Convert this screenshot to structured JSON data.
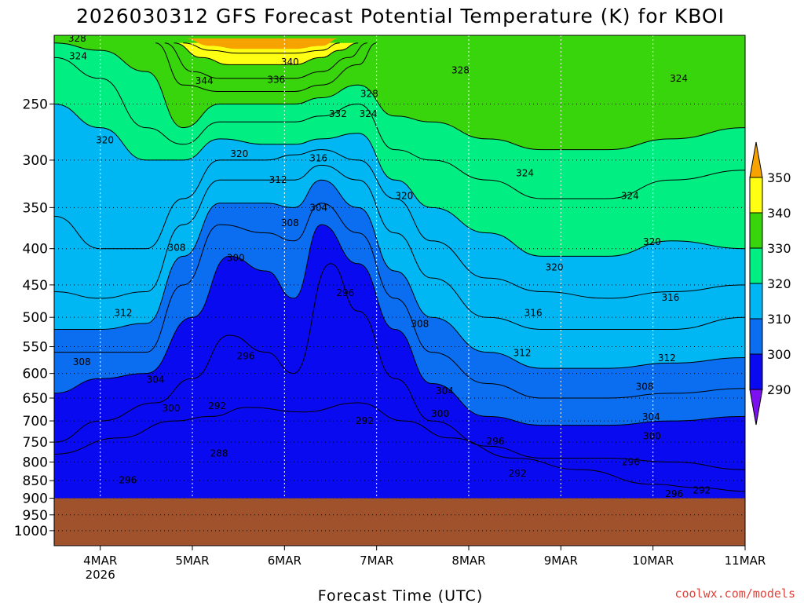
{
  "chart_data": {
    "type": "contour-filled-time-height",
    "title": "2026030312 GFS Forecast Potential Temperature (K) for KBOI",
    "xlabel": "Forecast Time (UTC)",
    "ylabel": "",
    "credit": "coolwx.com/models",
    "colors": {
      "t350": "#f6a300",
      "t340": "#ffff14",
      "t330": "#38d40c",
      "t320": "#00ee82",
      "t310": "#00b7f4",
      "t300": "#0b6ef0",
      "t290": "#0a0af0",
      "t280": "#7c10ee",
      "ground": "#a0522d"
    },
    "x_ticks": [
      {
        "label": "4MAR",
        "sub": "2026",
        "day": 4
      },
      {
        "label": "5MAR",
        "sub": "",
        "day": 5
      },
      {
        "label": "6MAR",
        "sub": "",
        "day": 6
      },
      {
        "label": "7MAR",
        "sub": "",
        "day": 7
      },
      {
        "label": "8MAR",
        "sub": "",
        "day": 8
      },
      {
        "label": "9MAR",
        "sub": "",
        "day": 9
      },
      {
        "label": "10MAR",
        "sub": "",
        "day": 10
      },
      {
        "label": "11MAR",
        "sub": "",
        "day": 11
      }
    ],
    "xlim_days": [
      3.5,
      11
    ],
    "y_ticks": [
      "250",
      "300",
      "350",
      "400",
      "450",
      "500",
      "550",
      "600",
      "650",
      "700",
      "750",
      "800",
      "850",
      "900",
      "950",
      "1000"
    ],
    "ylim_hpa": [
      1050,
      200
    ],
    "y_axis": "log-pressure",
    "surface_pressure_hpa": 900,
    "colorbar": {
      "levels": [
        "350",
        "340",
        "330",
        "320",
        "310",
        "300",
        "290"
      ],
      "extend": "both"
    },
    "isotherms": [
      {
        "value": 292,
        "t": [
          3.5,
          4.2,
          4.8,
          5.2,
          5.6,
          6.2,
          6.8,
          7.3,
          7.8,
          8.5,
          9.2,
          10.0,
          10.5,
          11
        ],
        "p": [
          780,
          740,
          700,
          690,
          670,
          680,
          660,
          700,
          740,
          790,
          820,
          860,
          870,
          880
        ]
      },
      {
        "value": 296,
        "t": [
          3.5,
          4.0,
          4.6,
          5.0,
          5.4,
          5.8,
          6.1,
          6.5,
          6.8,
          7.2,
          7.6,
          8.2,
          8.8,
          9.5,
          10.2,
          11
        ],
        "p": [
          750,
          700,
          660,
          610,
          530,
          560,
          600,
          420,
          490,
          610,
          700,
          760,
          790,
          790,
          800,
          820
        ]
      },
      {
        "value": 300,
        "t": [
          3.5,
          4.0,
          4.5,
          5.0,
          5.4,
          5.8,
          6.1,
          6.4,
          6.8,
          7.2,
          7.6,
          8.2,
          8.8,
          9.5,
          10.2,
          11
        ],
        "p": [
          640,
          610,
          600,
          500,
          410,
          430,
          470,
          370,
          420,
          520,
          620,
          690,
          710,
          710,
          700,
          690
        ]
      },
      {
        "value": 304,
        "t": [
          3.5,
          4.0,
          4.5,
          4.9,
          5.3,
          5.8,
          6.1,
          6.4,
          6.8,
          7.2,
          7.6,
          8.2,
          8.8,
          9.5,
          10.2,
          11
        ],
        "p": [
          560,
          560,
          560,
          450,
          370,
          380,
          390,
          345,
          380,
          470,
          560,
          620,
          650,
          650,
          640,
          630
        ]
      },
      {
        "value": 308,
        "t": [
          3.5,
          4.0,
          4.5,
          4.9,
          5.3,
          5.8,
          6.1,
          6.4,
          6.8,
          7.2,
          7.6,
          8.2,
          8.8,
          9.5,
          10.2,
          11
        ],
        "p": [
          520,
          520,
          510,
          410,
          345,
          345,
          350,
          320,
          350,
          430,
          500,
          560,
          590,
          590,
          580,
          570
        ]
      },
      {
        "value": 312,
        "t": [
          3.5,
          4.0,
          4.5,
          4.9,
          5.3,
          5.8,
          6.1,
          6.4,
          6.8,
          7.2,
          7.6,
          8.2,
          8.8,
          9.5,
          10.2,
          11
        ],
        "p": [
          460,
          470,
          460,
          370,
          320,
          320,
          320,
          305,
          320,
          380,
          440,
          500,
          520,
          520,
          520,
          500
        ]
      },
      {
        "value": 316,
        "t": [
          3.5,
          4.0,
          4.5,
          4.9,
          5.3,
          5.8,
          6.1,
          6.4,
          6.8,
          7.2,
          7.6,
          8.2,
          8.8,
          9.5,
          10.2,
          11
        ],
        "p": [
          360,
          400,
          400,
          340,
          300,
          300,
          295,
          290,
          300,
          340,
          390,
          440,
          460,
          470,
          460,
          450
        ]
      },
      {
        "value": 320,
        "t": [
          3.5,
          4.0,
          4.5,
          4.9,
          5.3,
          5.8,
          6.1,
          6.4,
          6.8,
          7.2,
          7.6,
          8.2,
          8.8,
          9.5,
          10.2,
          11
        ],
        "p": [
          250,
          270,
          300,
          300,
          280,
          285,
          285,
          280,
          275,
          320,
          350,
          380,
          410,
          410,
          390,
          400
        ]
      },
      {
        "value": 324,
        "t": [
          3.5,
          4.0,
          4.5,
          4.9,
          5.3,
          5.8,
          6.1,
          6.4,
          6.8,
          7.2,
          7.6,
          8.2,
          8.8,
          9.5,
          10.2,
          11
        ],
        "p": [
          215,
          230,
          270,
          285,
          265,
          265,
          265,
          260,
          250,
          290,
          300,
          320,
          340,
          340,
          320,
          310
        ]
      },
      {
        "value": 328,
        "t": [
          3.5,
          4.0,
          4.5,
          4.9,
          5.3,
          5.8,
          6.1,
          6.4,
          6.8,
          7.2,
          7.6,
          8.2,
          8.8,
          9.5,
          10.2,
          11
        ],
        "p": [
          205,
          210,
          225,
          270,
          250,
          250,
          250,
          245,
          235,
          260,
          265,
          280,
          290,
          290,
          280,
          270
        ]
      },
      {
        "value": 332,
        "t": [
          4.6,
          4.9,
          5.3,
          5.8,
          6.1,
          6.4,
          6.8,
          7.0
        ],
        "p": [
          205,
          235,
          240,
          240,
          240,
          235,
          220,
          205
        ]
      },
      {
        "value": 336,
        "t": [
          4.7,
          5.0,
          5.3,
          5.8,
          6.1,
          6.4,
          6.7,
          6.9
        ],
        "p": [
          205,
          225,
          230,
          230,
          230,
          225,
          215,
          205
        ]
      },
      {
        "value": 340,
        "t": [
          4.8,
          5.1,
          5.4,
          5.8,
          6.1,
          6.4,
          6.6,
          6.8
        ],
        "p": [
          205,
          215,
          220,
          220,
          220,
          215,
          210,
          205
        ]
      },
      {
        "value": 344,
        "t": [
          4.9,
          5.2,
          5.5,
          5.8,
          6.1,
          6.4,
          6.6
        ],
        "p": [
          205,
          210,
          212,
          212,
          212,
          210,
          205
        ]
      }
    ],
    "contour_labels": [
      {
        "text": "328",
        "t": 3.75,
        "p": 202
      },
      {
        "text": "324",
        "t": 3.76,
        "p": 214
      },
      {
        "text": "340",
        "t": 6.06,
        "p": 218
      },
      {
        "text": "344",
        "t": 5.13,
        "p": 232
      },
      {
        "text": "336",
        "t": 5.91,
        "p": 231
      },
      {
        "text": "328",
        "t": 7.91,
        "p": 224
      },
      {
        "text": "324",
        "t": 10.28,
        "p": 230
      },
      {
        "text": "328",
        "t": 6.92,
        "p": 242
      },
      {
        "text": "332",
        "t": 6.58,
        "p": 258
      },
      {
        "text": "324",
        "t": 6.91,
        "p": 258
      },
      {
        "text": "320",
        "t": 4.05,
        "p": 281
      },
      {
        "text": "320",
        "t": 5.51,
        "p": 294
      },
      {
        "text": "316",
        "t": 6.37,
        "p": 298
      },
      {
        "text": "324",
        "t": 8.61,
        "p": 313
      },
      {
        "text": "312",
        "t": 5.93,
        "p": 320
      },
      {
        "text": "320",
        "t": 7.3,
        "p": 337
      },
      {
        "text": "324",
        "t": 9.75,
        "p": 337
      },
      {
        "text": "304",
        "t": 6.37,
        "p": 350
      },
      {
        "text": "308",
        "t": 6.06,
        "p": 368
      },
      {
        "text": "320",
        "t": 9.99,
        "p": 391
      },
      {
        "text": "308",
        "t": 4.83,
        "p": 399
      },
      {
        "text": "300",
        "t": 5.47,
        "p": 412
      },
      {
        "text": "320",
        "t": 8.93,
        "p": 425
      },
      {
        "text": "296",
        "t": 6.66,
        "p": 462
      },
      {
        "text": "316",
        "t": 10.19,
        "p": 469
      },
      {
        "text": "312",
        "t": 4.25,
        "p": 493
      },
      {
        "text": "316",
        "t": 8.7,
        "p": 493
      },
      {
        "text": "308",
        "t": 7.47,
        "p": 511
      },
      {
        "text": "312",
        "t": 8.58,
        "p": 561
      },
      {
        "text": "296",
        "t": 5.58,
        "p": 567
      },
      {
        "text": "312",
        "t": 10.15,
        "p": 571
      },
      {
        "text": "308",
        "t": 3.8,
        "p": 578
      },
      {
        "text": "304",
        "t": 4.6,
        "p": 612
      },
      {
        "text": "308",
        "t": 9.91,
        "p": 626
      },
      {
        "text": "304",
        "t": 7.74,
        "p": 635
      },
      {
        "text": "292",
        "t": 5.27,
        "p": 667
      },
      {
        "text": "300",
        "t": 4.77,
        "p": 672
      },
      {
        "text": "300",
        "t": 7.69,
        "p": 684
      },
      {
        "text": "304",
        "t": 9.98,
        "p": 691
      },
      {
        "text": "292",
        "t": 6.87,
        "p": 700
      },
      {
        "text": "300",
        "t": 9.99,
        "p": 736
      },
      {
        "text": "296",
        "t": 8.29,
        "p": 748
      },
      {
        "text": "288",
        "t": 5.29,
        "p": 778
      },
      {
        "text": "296",
        "t": 9.76,
        "p": 800
      },
      {
        "text": "292",
        "t": 8.53,
        "p": 830
      },
      {
        "text": "296",
        "t": 4.3,
        "p": 849
      },
      {
        "text": "292",
        "t": 10.53,
        "p": 877
      },
      {
        "text": "296",
        "t": 10.23,
        "p": 887
      }
    ]
  }
}
